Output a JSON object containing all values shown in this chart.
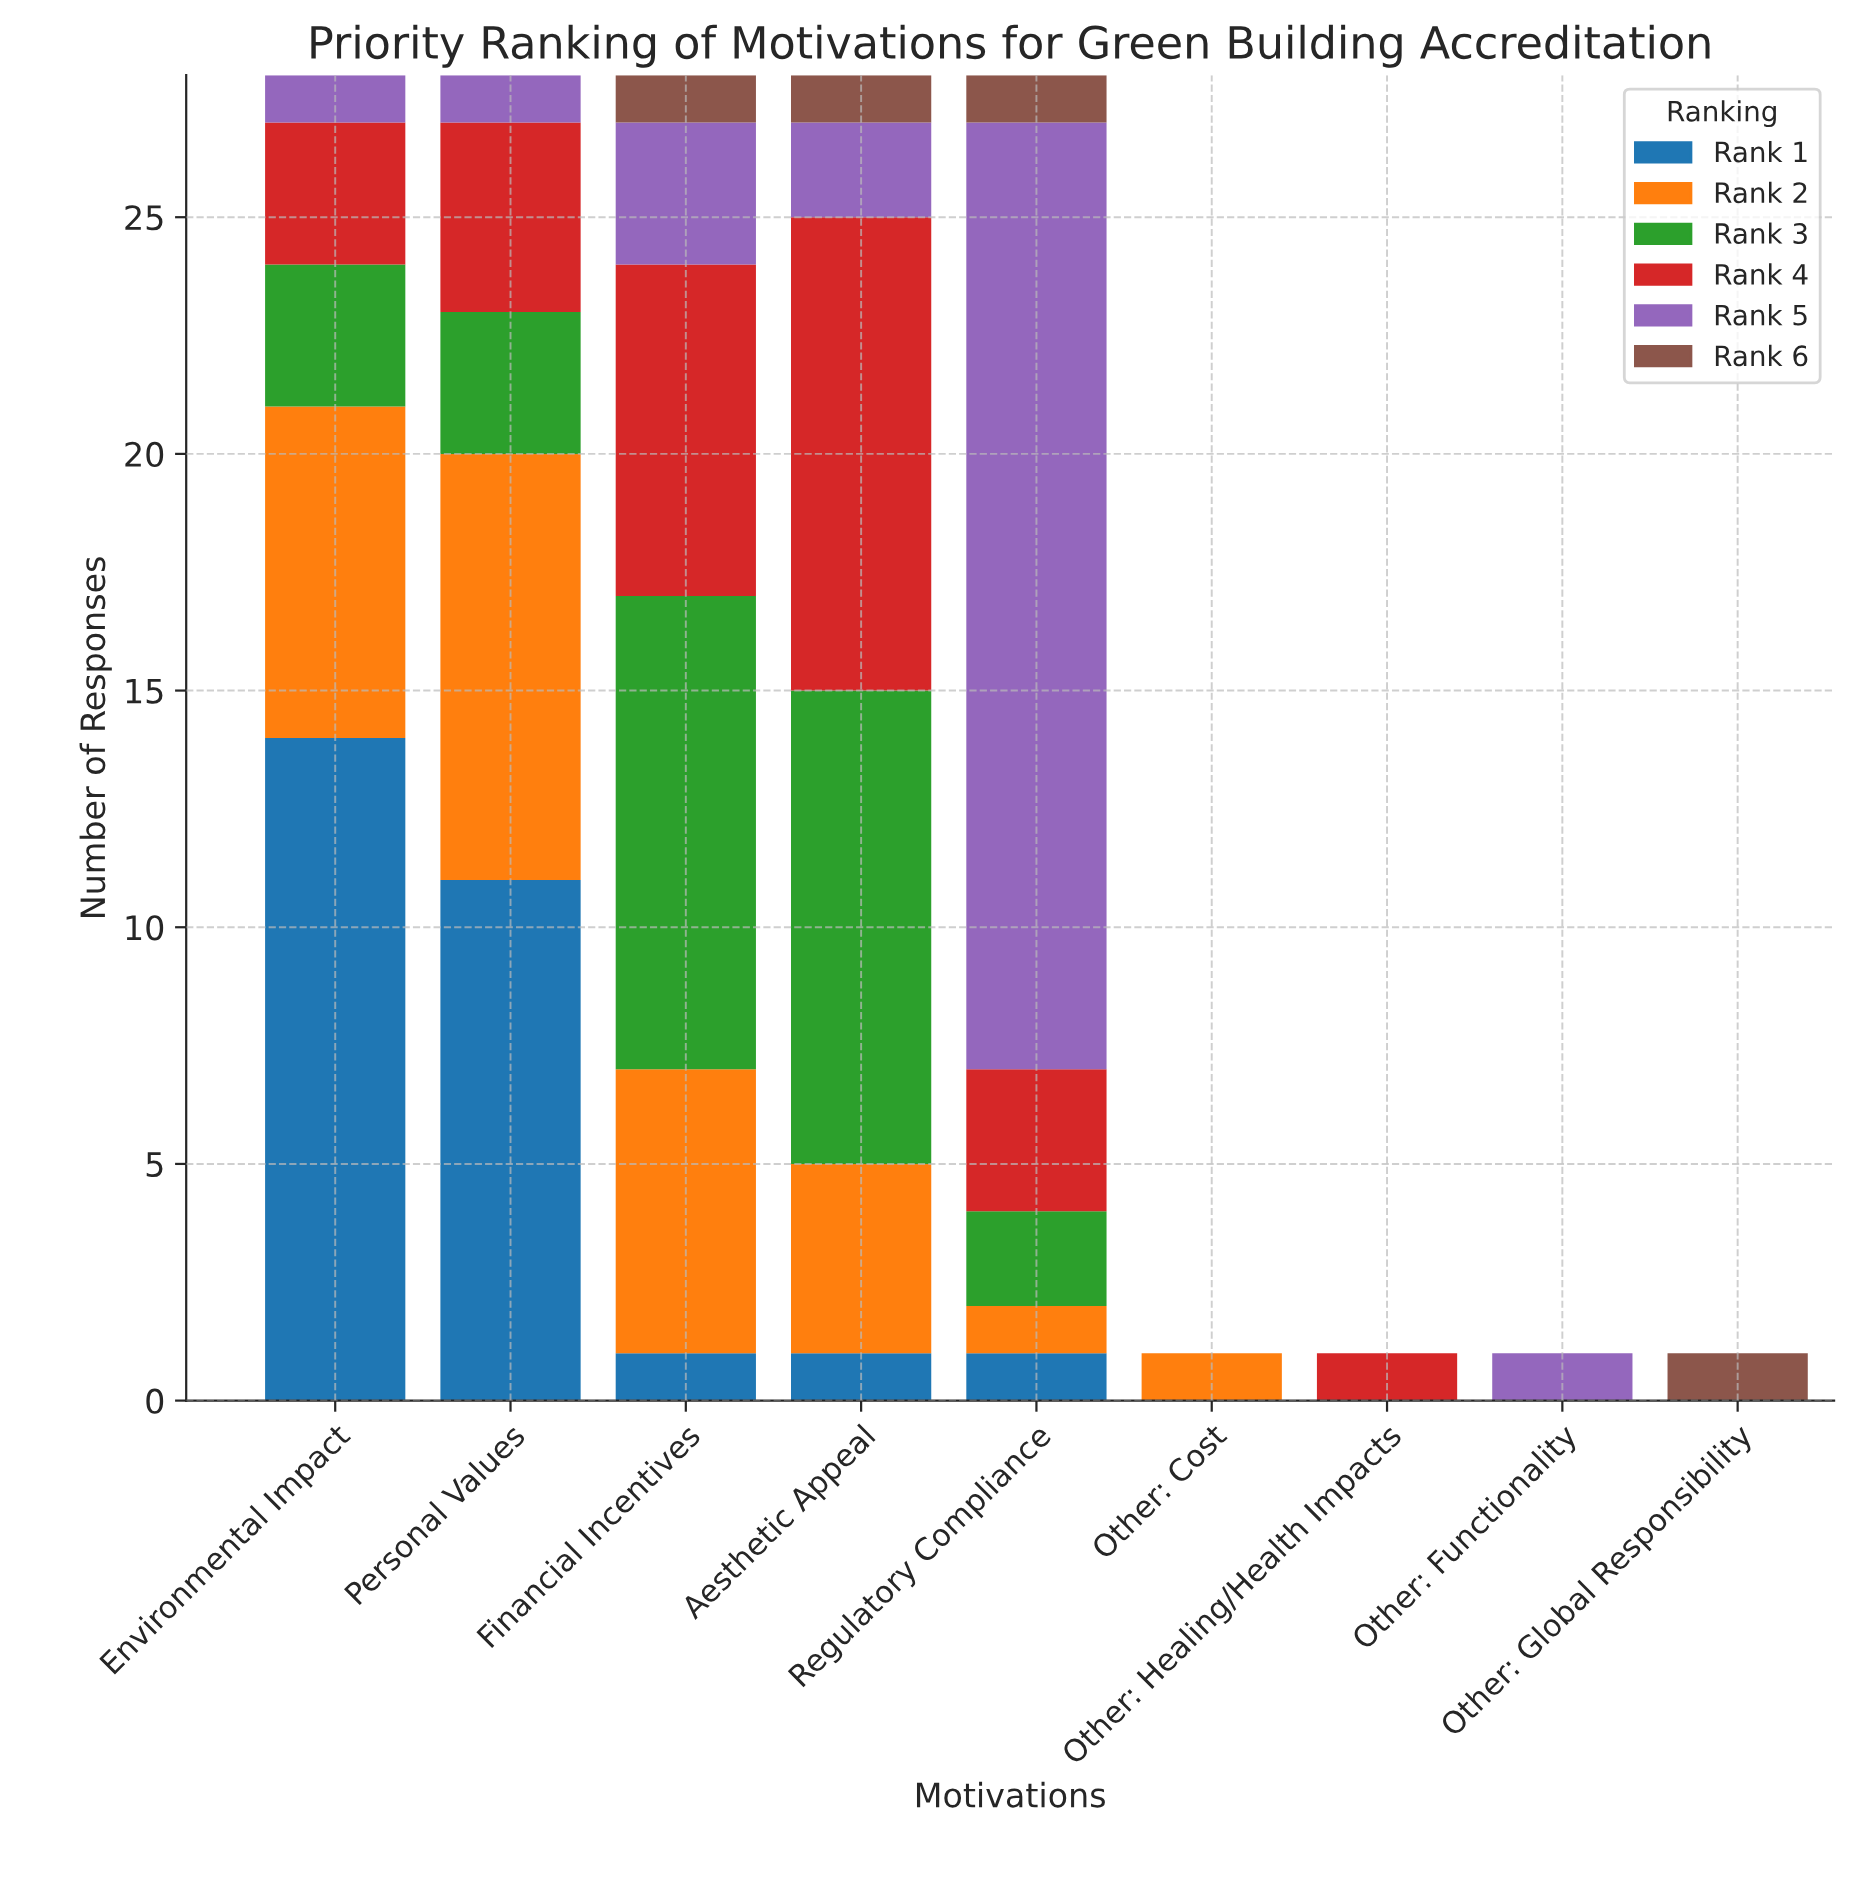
{
  "chart_data": {
    "type": "bar",
    "stacked": true,
    "title": "Priority Ranking of Motivations for Green Building Accreditation",
    "xlabel": "Motivations",
    "ylabel": "Number of Responses",
    "legend_title": "Ranking",
    "legend": "top right",
    "grid": true,
    "categories": [
      "Environmental Impact",
      "Personal Values",
      "Financial Incentives",
      "Aesthetic Appeal",
      "Regulatory Compliance",
      "Other: Cost",
      "Other: Healing/Health Impacts",
      "Other: Functionality",
      "Other: Global Responsibility"
    ],
    "ylim": [
      0,
      28
    ],
    "yticks": [
      0,
      5,
      10,
      15,
      20,
      25
    ],
    "series": [
      {
        "name": "Rank 1",
        "color": "#1f77b4",
        "values": [
          14,
          11,
          1,
          1,
          1,
          null,
          null,
          null,
          null
        ]
      },
      {
        "name": "Rank 2",
        "color": "#ff7f0e",
        "values": [
          7,
          9,
          6,
          4,
          1,
          1,
          null,
          null,
          null
        ]
      },
      {
        "name": "Rank 3",
        "color": "#2ca02c",
        "values": [
          3,
          3,
          10,
          10,
          2,
          null,
          null,
          null,
          null
        ]
      },
      {
        "name": "Rank 4",
        "color": "#d62728",
        "values": [
          3,
          4,
          7,
          10,
          3,
          null,
          1,
          null,
          null
        ]
      },
      {
        "name": "Rank 5",
        "color": "#9467bd",
        "values": [
          1,
          1,
          3,
          2,
          20,
          null,
          null,
          1,
          null
        ]
      },
      {
        "name": "Rank 6",
        "color": "#8c564b",
        "values": [
          null,
          null,
          1,
          1,
          1,
          null,
          null,
          null,
          1
        ]
      }
    ]
  }
}
